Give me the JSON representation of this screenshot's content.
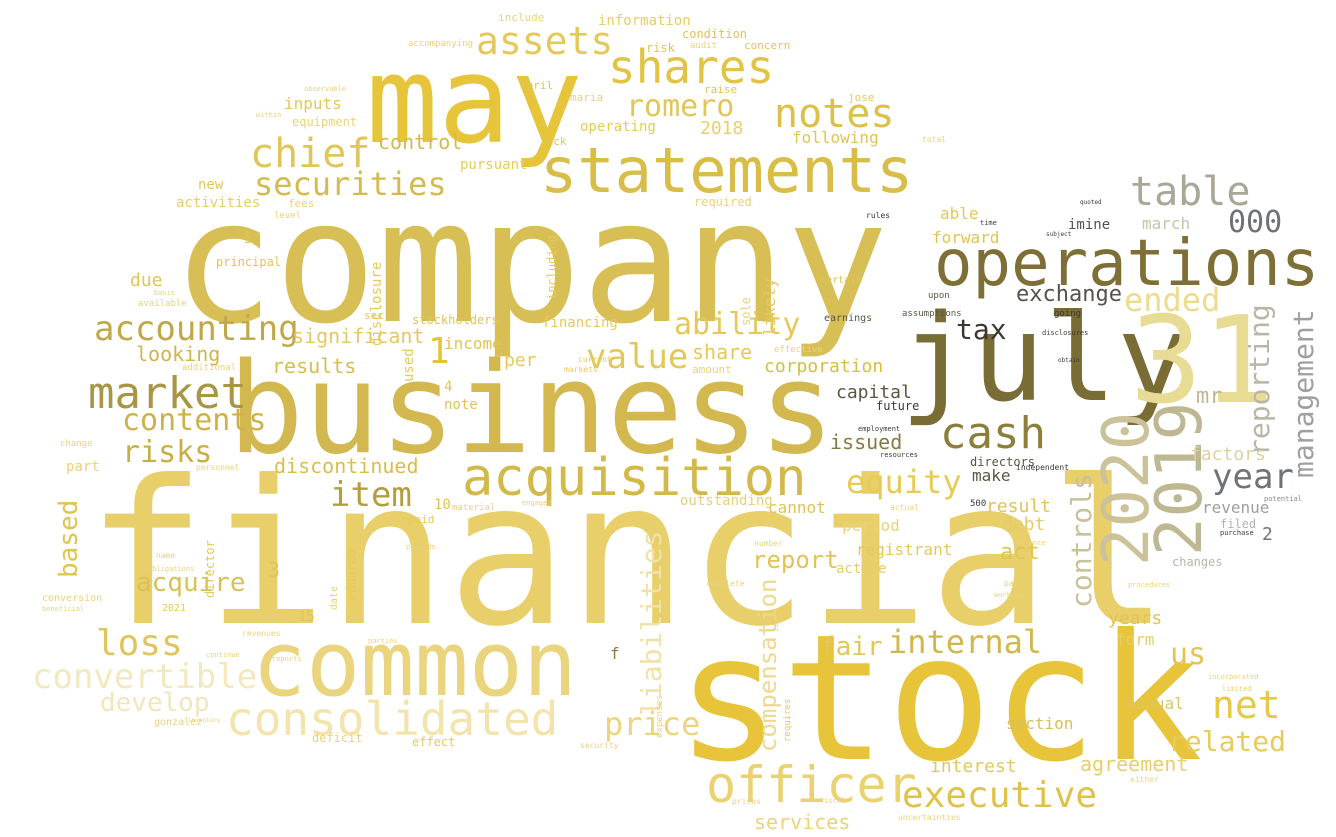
{
  "palette": {
    "background": "#ffffff",
    "dark_olive": "#7a6c35",
    "olive": "#8e7e3c",
    "gold": "#e5c331",
    "mustard": "#d9bb4a",
    "khaki": "#c9b25a",
    "pale_gold": "#ecd77c",
    "cream": "#f3e7b3",
    "sage": "#bdb892",
    "gray": "#8a8a85",
    "slate": "#6f7378",
    "charcoal": "#333333"
  },
  "words": [
    {
      "text": "financial",
      "color": "#e9cf6a"
    },
    {
      "text": "company",
      "color": "#d8bf55"
    },
    {
      "text": "stock",
      "color": "#e8c43a"
    },
    {
      "text": "business",
      "color": "#d3b850"
    },
    {
      "text": "may",
      "color": "#e6c53a"
    },
    {
      "text": "july",
      "color": "#7a6c35"
    },
    {
      "text": "31",
      "color": "#e8dc95"
    },
    {
      "text": "common",
      "color": "#ead57e"
    },
    {
      "text": "statements",
      "color": "#d9bd49"
    },
    {
      "text": "operations",
      "color": "#7d6f36"
    },
    {
      "text": "2020",
      "color": "#cbc29a"
    },
    {
      "text": "2019",
      "color": "#bdb892"
    },
    {
      "text": "acquisition",
      "color": "#d2b94a"
    },
    {
      "text": "officer",
      "color": "#ead270"
    },
    {
      "text": "consolidated",
      "color": "#f3e4ad"
    },
    {
      "text": "shares",
      "color": "#e1c444"
    },
    {
      "text": "market",
      "color": "#a89644"
    },
    {
      "text": "cash",
      "color": "#8e7e3c"
    },
    {
      "text": "table",
      "color": "#a9a796"
    },
    {
      "text": "assets",
      "color": "#e4c95a"
    },
    {
      "text": "notes",
      "color": "#dcc04a"
    },
    {
      "text": "chief",
      "color": "#e0c558"
    },
    {
      "text": "securities",
      "color": "#d4bb50"
    },
    {
      "text": "accounting",
      "color": "#c0a748"
    },
    {
      "text": "contents",
      "color": "#cdb24b"
    },
    {
      "text": "value",
      "color": "#e3c75a"
    },
    {
      "text": "item",
      "color": "#b49e3c"
    },
    {
      "text": "equity",
      "color": "#e6cb54"
    },
    {
      "text": "ability",
      "color": "#e4c95a"
    },
    {
      "text": "executive",
      "color": "#e0c24a"
    },
    {
      "text": "convertible",
      "color": "#f3e8be"
    },
    {
      "text": "loss",
      "color": "#e0c55c"
    },
    {
      "text": "price",
      "color": "#ecd57e"
    },
    {
      "text": "net",
      "color": "#e6c84a"
    },
    {
      "text": "internal",
      "color": "#d0b74e"
    },
    {
      "text": "management",
      "color": "#9fa09d"
    },
    {
      "text": "reporting",
      "color": "#b9b6a7"
    },
    {
      "text": "controls",
      "color": "#c8c199"
    },
    {
      "text": "year",
      "color": "#6f7378"
    },
    {
      "text": "ended",
      "color": "#eedb8e"
    },
    {
      "text": "000",
      "color": "#6f7378"
    },
    {
      "text": "risks",
      "color": "#c9ae45"
    },
    {
      "text": "exchange",
      "color": "#55524a"
    },
    {
      "text": "tax",
      "color": "#3a382f"
    },
    {
      "text": "romero",
      "color": "#e2c65a"
    },
    {
      "text": "related",
      "color": "#e6cb5e"
    },
    {
      "text": "us",
      "color": "#e1c453"
    },
    {
      "text": "liabilities",
      "color": "#f0e2a6"
    },
    {
      "text": "develop",
      "color": "#f1e6bc"
    },
    {
      "text": "acquire",
      "color": "#d9c15a"
    },
    {
      "text": "based",
      "color": "#e0c450"
    },
    {
      "text": "compensation",
      "color": "#eed98e"
    },
    {
      "text": "report",
      "color": "#e1c453"
    },
    {
      "text": "fair",
      "color": "#e3c75a"
    },
    {
      "text": "agreement",
      "color": "#e7cf69"
    },
    {
      "text": "interest",
      "color": "#e0c860"
    },
    {
      "text": "services",
      "color": "#e9d37c"
    },
    {
      "text": "discontinued",
      "color": "#d9bd4d"
    },
    {
      "text": "significant",
      "color": "#e4c961"
    },
    {
      "text": "results",
      "color": "#d8bd4c"
    },
    {
      "text": "looking",
      "color": "#cfb54c"
    },
    {
      "text": "share",
      "color": "#e5c955"
    },
    {
      "text": "corporation",
      "color": "#d9bc43"
    },
    {
      "text": "capital",
      "color": "#5b5642"
    },
    {
      "text": "issued",
      "color": "#867a44"
    },
    {
      "text": "future",
      "color": "#3a3a35"
    },
    {
      "text": "mr",
      "color": "#bdb892"
    },
    {
      "text": "factors",
      "color": "#ddd29c"
    },
    {
      "text": "revenue",
      "color": "#9fa09d"
    },
    {
      "text": "filed",
      "color": "#b3b3aa"
    },
    {
      "text": "years",
      "color": "#e1c453"
    },
    {
      "text": "form",
      "color": "#e8cf68"
    },
    {
      "text": "annual",
      "color": "#ddc562"
    },
    {
      "text": "section",
      "color": "#d8c05a"
    },
    {
      "text": "debt",
      "color": "#e4cc6a"
    },
    {
      "text": "result",
      "color": "#e1c453"
    },
    {
      "text": "act",
      "color": "#e1c453"
    },
    {
      "text": "registrant",
      "color": "#e4c95a"
    },
    {
      "text": "period",
      "color": "#ead27a"
    },
    {
      "text": "active",
      "color": "#e7ce67"
    },
    {
      "text": "cannot",
      "color": "#e1c453"
    },
    {
      "text": "outstanding",
      "color": "#e8d07a"
    },
    {
      "text": "make",
      "color": "#5b5642"
    },
    {
      "text": "directors",
      "color": "#5b5642"
    },
    {
      "text": "likely",
      "color": "#e5c860"
    },
    {
      "text": "sole",
      "color": "#ead37a"
    },
    {
      "text": "able",
      "color": "#e3c75a"
    },
    {
      "text": "forward",
      "color": "#e1c453"
    },
    {
      "text": "march",
      "color": "#c9c3a4"
    },
    {
      "text": "imine",
      "color": "#55524a"
    },
    {
      "text": "control",
      "color": "#d4ba4c"
    },
    {
      "text": "following",
      "color": "#e1c453"
    },
    {
      "text": "operating",
      "color": "#e6cb54"
    },
    {
      "text": "2018",
      "color": "#e8d06e"
    },
    {
      "text": "pursuant",
      "color": "#e7cc55"
    },
    {
      "text": "inputs",
      "color": "#e3c75a"
    },
    {
      "text": "equipment",
      "color": "#ead27a"
    },
    {
      "text": "new",
      "color": "#e3c75a"
    },
    {
      "text": "activities",
      "color": "#e8cd64"
    },
    {
      "text": "due",
      "color": "#e1c453"
    },
    {
      "text": "part",
      "color": "#ead27a"
    },
    {
      "text": "information",
      "color": "#e8cd64"
    },
    {
      "text": "condition",
      "color": "#e1c453"
    },
    {
      "text": "include",
      "color": "#ead27a"
    },
    {
      "text": "risk",
      "color": "#e0c35a"
    },
    {
      "text": "audit",
      "color": "#ead27a"
    },
    {
      "text": "concern",
      "color": "#e1c453"
    },
    {
      "text": "raise",
      "color": "#e0c35a"
    },
    {
      "text": "jose",
      "color": "#e6c958"
    },
    {
      "text": "maria",
      "color": "#ead27a"
    },
    {
      "text": "lack",
      "color": "#e1c453"
    },
    {
      "text": "april",
      "color": "#e1c453"
    },
    {
      "text": "accompanying",
      "color": "#ead27a"
    },
    {
      "text": "observable",
      "color": "#ead27a"
    },
    {
      "text": "within",
      "color": "#ead27a"
    },
    {
      "text": "fees",
      "color": "#ead27a"
    },
    {
      "text": "level",
      "color": "#ead27a"
    },
    {
      "text": "required",
      "color": "#ead27a"
    },
    {
      "text": "principal",
      "color": "#e1c453"
    },
    {
      "text": "disclosure",
      "color": "#e6c958"
    },
    {
      "text": "including",
      "color": "#e6c958"
    },
    {
      "text": "stockholders",
      "color": "#e1c453"
    },
    {
      "text": "sec",
      "color": "#e1c453"
    },
    {
      "text": "income",
      "color": "#e1c453"
    },
    {
      "text": "per",
      "color": "#e6c958"
    },
    {
      "text": "used",
      "color": "#e6c958"
    },
    {
      "text": "note",
      "color": "#e1c453"
    },
    {
      "text": "financing",
      "color": "#e6c958"
    },
    {
      "text": "amount",
      "color": "#ead27a"
    },
    {
      "text": "effective",
      "color": "#ead27a"
    },
    {
      "text": "earnings",
      "color": "#5b5642"
    },
    {
      "text": "assumptions",
      "color": "#5b5642"
    },
    {
      "text": "upon",
      "color": "#5b5642"
    },
    {
      "text": "certain",
      "color": "#e1c453"
    },
    {
      "text": "employment",
      "color": "#3a3a35"
    },
    {
      "text": "resources",
      "color": "#3a3a35"
    },
    {
      "text": "going",
      "color": "#3a3a35"
    },
    {
      "text": "disclosures",
      "color": "#3a3a35"
    },
    {
      "text": "independent",
      "color": "#3a3a35"
    },
    {
      "text": "additional",
      "color": "#ead27a"
    },
    {
      "text": "available",
      "color": "#ead27a"
    },
    {
      "text": "basis",
      "color": "#ead27a"
    },
    {
      "text": "markets",
      "color": "#e6c958"
    },
    {
      "text": "current",
      "color": "#e6c958"
    },
    {
      "text": "change",
      "color": "#ead27a"
    },
    {
      "text": "personnel",
      "color": "#ead27a"
    },
    {
      "text": "director",
      "color": "#e6c958"
    },
    {
      "text": "eduardo",
      "color": "#e6c958"
    },
    {
      "text": "date",
      "color": "#ead27a"
    },
    {
      "text": "material",
      "color": "#ead27a"
    },
    {
      "text": "paid",
      "color": "#e6c958"
    },
    {
      "text": "engaged",
      "color": "#ead27a"
    },
    {
      "text": "name",
      "color": "#ead27a"
    },
    {
      "text": "obligations",
      "color": "#ead27a"
    },
    {
      "text": "conversion",
      "color": "#ead27a"
    },
    {
      "text": "beneficial",
      "color": "#ead27a"
    },
    {
      "text": "2021",
      "color": "#e6c958"
    },
    {
      "text": "revenues",
      "color": "#ead27a"
    },
    {
      "text": "parties",
      "color": "#ead27a"
    },
    {
      "text": "reports",
      "color": "#ead27a"
    },
    {
      "text": "continue",
      "color": "#ead27a"
    },
    {
      "text": "inventory",
      "color": "#ead27a"
    },
    {
      "text": "gonzalez",
      "color": "#ead27a"
    },
    {
      "text": "deficit",
      "color": "#ead27a"
    },
    {
      "text": "effect",
      "color": "#e6c958"
    },
    {
      "text": "security",
      "color": "#ead27a"
    },
    {
      "text": "expenses",
      "color": "#ead27a"
    },
    {
      "text": "requires",
      "color": "#e6c958"
    },
    {
      "text": "taxes",
      "color": "#ead27a"
    },
    {
      "text": "prices",
      "color": "#ead27a"
    },
    {
      "text": "fiscal",
      "color": "#ead27a"
    },
    {
      "text": "uncertainties",
      "color": "#ead27a"
    },
    {
      "text": "complete",
      "color": "#ead27a"
    },
    {
      "text": "number",
      "color": "#ead27a"
    },
    {
      "text": "provide",
      "color": "#ead27a"
    },
    {
      "text": "actual",
      "color": "#ead27a"
    },
    {
      "text": "working",
      "color": "#ead27a"
    },
    {
      "text": "balance",
      "color": "#ead27a"
    },
    {
      "text": "pay",
      "color": "#ead27a"
    },
    {
      "text": "limited",
      "color": "#ead27a"
    },
    {
      "text": "incorporated",
      "color": "#ead27a"
    },
    {
      "text": "changes",
      "color": "#b9b6a7"
    },
    {
      "text": "procedures",
      "color": "#ead27a"
    },
    {
      "text": "either",
      "color": "#ead27a"
    },
    {
      "text": "potential",
      "color": "#8a8a85"
    },
    {
      "text": "purchase",
      "color": "#3a3a35"
    },
    {
      "text": "obtain",
      "color": "#3a3a35"
    },
    {
      "text": "subject",
      "color": "#3a3a35"
    },
    {
      "text": "quoted",
      "color": "#3a3a35"
    },
    {
      "text": "rules",
      "color": "#3a3a35"
    },
    {
      "text": "time",
      "color": "#3a3a35"
    },
    {
      "text": "total",
      "color": "#ead27a"
    },
    {
      "text": "1",
      "color": "#e5c331"
    },
    {
      "text": "2",
      "color": "#6f7378"
    },
    {
      "text": "3",
      "color": "#e1c453"
    },
    {
      "text": "4",
      "color": "#e1c453"
    },
    {
      "text": "5",
      "color": "#e1c453"
    },
    {
      "text": "10",
      "color": "#e1c453"
    },
    {
      "text": "15",
      "color": "#e1c453"
    },
    {
      "text": "f",
      "color": "#8e7e3c"
    },
    {
      "text": "500",
      "color": "#3a3a35"
    }
  ]
}
